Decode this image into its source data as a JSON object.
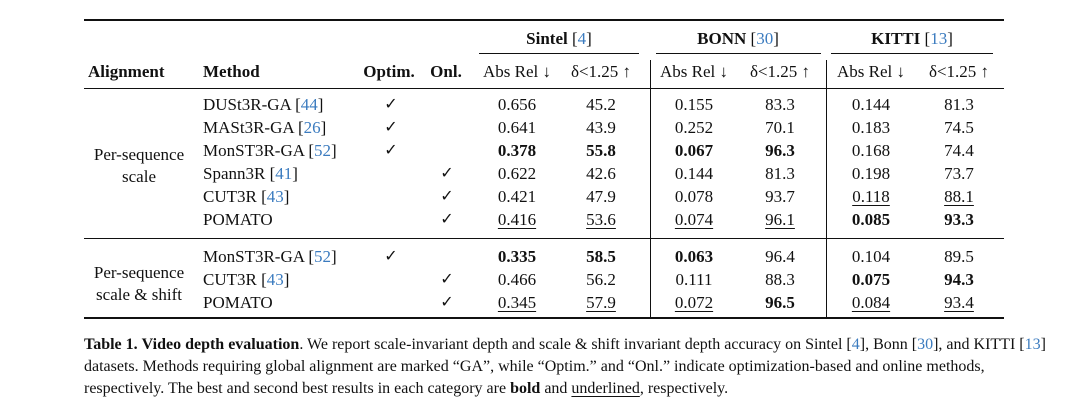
{
  "headers": {
    "alignment": "Alignment",
    "method": "Method",
    "optim": "Optim.",
    "onl": "Onl.",
    "groups": [
      {
        "name": "Sintel",
        "ref": "4"
      },
      {
        "name": "BONN",
        "ref": "30"
      },
      {
        "name": "KITTI",
        "ref": "13"
      }
    ],
    "metric_absrel": "Abs Rel ↓",
    "metric_delta": "δ<1.25 ↑"
  },
  "check_mark": "✓",
  "sections": [
    {
      "label_lines": [
        "Per-sequence",
        "scale"
      ],
      "rows": [
        {
          "method": "DUSt3R-GA",
          "ref": "44",
          "optim": true,
          "onl": false,
          "values": [
            {
              "v": "0.656",
              "s": ""
            },
            {
              "v": "45.2",
              "s": ""
            },
            {
              "v": "0.155",
              "s": ""
            },
            {
              "v": "83.3",
              "s": ""
            },
            {
              "v": "0.144",
              "s": ""
            },
            {
              "v": "81.3",
              "s": ""
            }
          ]
        },
        {
          "method": "MASt3R-GA",
          "ref": "26",
          "optim": true,
          "onl": false,
          "values": [
            {
              "v": "0.641",
              "s": ""
            },
            {
              "v": "43.9",
              "s": ""
            },
            {
              "v": "0.252",
              "s": ""
            },
            {
              "v": "70.1",
              "s": ""
            },
            {
              "v": "0.183",
              "s": ""
            },
            {
              "v": "74.5",
              "s": ""
            }
          ]
        },
        {
          "method": "MonST3R-GA",
          "ref": "52",
          "optim": true,
          "onl": false,
          "values": [
            {
              "v": "0.378",
              "s": "bold"
            },
            {
              "v": "55.8",
              "s": "bold"
            },
            {
              "v": "0.067",
              "s": "bold"
            },
            {
              "v": "96.3",
              "s": "bold"
            },
            {
              "v": "0.168",
              "s": ""
            },
            {
              "v": "74.4",
              "s": ""
            }
          ]
        },
        {
          "method": "Spann3R",
          "ref": "41",
          "optim": false,
          "onl": true,
          "values": [
            {
              "v": "0.622",
              "s": ""
            },
            {
              "v": "42.6",
              "s": ""
            },
            {
              "v": "0.144",
              "s": ""
            },
            {
              "v": "81.3",
              "s": ""
            },
            {
              "v": "0.198",
              "s": ""
            },
            {
              "v": "73.7",
              "s": ""
            }
          ]
        },
        {
          "method": "CUT3R",
          "ref": "43",
          "optim": false,
          "onl": true,
          "values": [
            {
              "v": "0.421",
              "s": ""
            },
            {
              "v": "47.9",
              "s": ""
            },
            {
              "v": "0.078",
              "s": ""
            },
            {
              "v": "93.7",
              "s": ""
            },
            {
              "v": "0.118",
              "s": "underline"
            },
            {
              "v": "88.1",
              "s": "underline"
            }
          ]
        },
        {
          "method": "POMATO",
          "ref": "",
          "optim": false,
          "onl": true,
          "values": [
            {
              "v": "0.416",
              "s": "underline"
            },
            {
              "v": "53.6",
              "s": "underline"
            },
            {
              "v": "0.074",
              "s": "underline"
            },
            {
              "v": "96.1",
              "s": "underline"
            },
            {
              "v": "0.085",
              "s": "bold"
            },
            {
              "v": "93.3",
              "s": "bold"
            }
          ]
        }
      ]
    },
    {
      "label_lines": [
        "Per-sequence",
        "scale & shift"
      ],
      "rows": [
        {
          "method": "MonST3R-GA",
          "ref": "52",
          "optim": true,
          "onl": false,
          "values": [
            {
              "v": "0.335",
              "s": "bold"
            },
            {
              "v": "58.5",
              "s": "bold"
            },
            {
              "v": "0.063",
              "s": "bold"
            },
            {
              "v": "96.4",
              "s": ""
            },
            {
              "v": "0.104",
              "s": ""
            },
            {
              "v": "89.5",
              "s": ""
            }
          ]
        },
        {
          "method": "CUT3R",
          "ref": "43",
          "optim": false,
          "onl": true,
          "values": [
            {
              "v": "0.466",
              "s": ""
            },
            {
              "v": "56.2",
              "s": ""
            },
            {
              "v": "0.111",
              "s": ""
            },
            {
              "v": "88.3",
              "s": ""
            },
            {
              "v": "0.075",
              "s": "bold"
            },
            {
              "v": "94.3",
              "s": "bold"
            }
          ]
        },
        {
          "method": "POMATO",
          "ref": "",
          "optim": false,
          "onl": true,
          "values": [
            {
              "v": "0.345",
              "s": "underline"
            },
            {
              "v": "57.9",
              "s": "underline"
            },
            {
              "v": "0.072",
              "s": "underline"
            },
            {
              "v": "96.5",
              "s": "bold"
            },
            {
              "v": "0.084",
              "s": "underline"
            },
            {
              "v": "93.4",
              "s": "underline"
            }
          ]
        }
      ]
    }
  ],
  "caption": {
    "label": "Table 1.",
    "title": "Video depth evaluation",
    "segments": [
      {
        "text": ". We report scale-invariant depth and scale & shift invariant depth accuracy on Sintel [",
        "style": ""
      },
      {
        "text": "4",
        "style": "cite"
      },
      {
        "text": "], Bonn [",
        "style": ""
      },
      {
        "text": "30",
        "style": "cite"
      },
      {
        "text": "], and KITTI [",
        "style": ""
      },
      {
        "text": "13",
        "style": "cite"
      },
      {
        "text": "] datasets. Methods requiring global alignment are marked “GA”, while “Optim.” and “Onl.” indicate optimization-based and online methods, respectively. The best and second best results in each category are ",
        "style": ""
      },
      {
        "text": "bold",
        "style": "bold"
      },
      {
        "text": " and ",
        "style": ""
      },
      {
        "text": "underlined",
        "style": "underline"
      },
      {
        "text": ", respectively.",
        "style": ""
      }
    ]
  }
}
